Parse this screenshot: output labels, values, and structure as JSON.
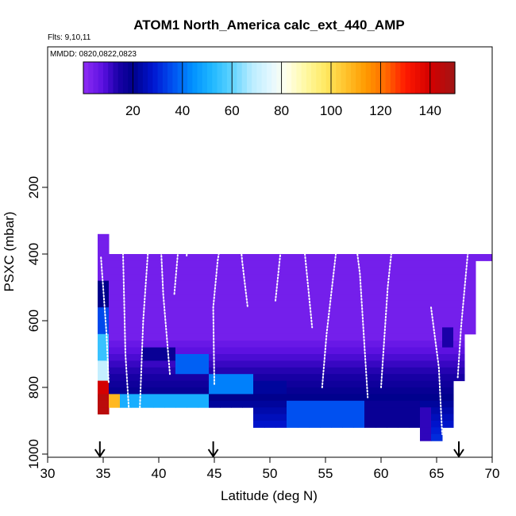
{
  "chart_data": {
    "type": "heatmap",
    "title": "ATOM1 North_America calc_ext_440_AMP",
    "subtitle": "Flts: 9,10,11",
    "annotation": "MMDD: 0820,0822,0823",
    "xlabel": "Latitude (deg N)",
    "ylabel": "PSXC (mbar)",
    "xlim": [
      30,
      70
    ],
    "ylim": [
      1000,
      0
    ],
    "x_ticks": [
      "30",
      "35",
      "40",
      "45",
      "50",
      "55",
      "60",
      "65",
      "70"
    ],
    "y_ticks": [
      "200",
      "400",
      "600",
      "800",
      "1000"
    ],
    "colorbar": {
      "range": [
        0,
        150
      ],
      "ticks": [
        "20",
        "40",
        "60",
        "80",
        "100",
        "120",
        "140"
      ]
    },
    "arrows_x": [
      34.7,
      44.9,
      67.0
    ]
  }
}
